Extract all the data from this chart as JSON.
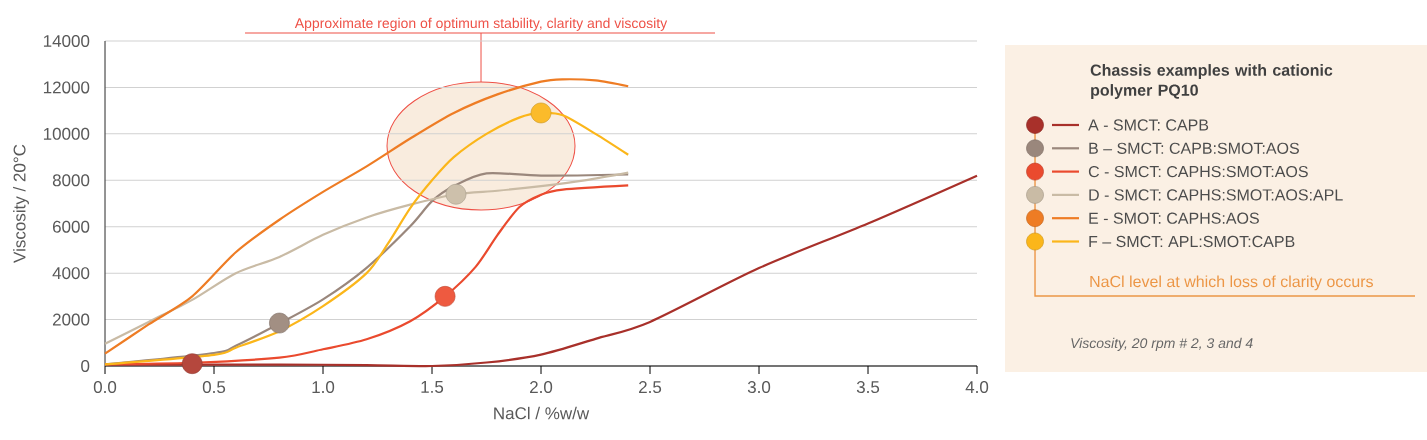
{
  "chart_data": {
    "type": "line",
    "xlabel": "NaCl / %w/w",
    "ylabel": "Viscosity / 20°C",
    "legend_title": "Chassis examples with cationic polymer PQ10",
    "xlim": [
      0,
      4
    ],
    "ylim": [
      0,
      14000
    ],
    "xticks": [
      {
        "value": 0,
        "label": "0.0"
      },
      {
        "value": 0.5,
        "label": "0.5"
      },
      {
        "value": 1,
        "label": "1.0"
      },
      {
        "value": 1.5,
        "label": "1.5"
      },
      {
        "value": 2,
        "label": "2.0"
      },
      {
        "value": 2.5,
        "label": "2.5"
      },
      {
        "value": 3,
        "label": "3.0"
      },
      {
        "value": 3.5,
        "label": "3.5"
      },
      {
        "value": 4,
        "label": "4.0"
      }
    ],
    "yticks": [
      0,
      2000,
      4000,
      6000,
      8000,
      10000,
      12000,
      14000
    ],
    "grid": "y",
    "legend": "right",
    "line_style": "solid",
    "series": [
      {
        "name": "A - SMCT: CAPB",
        "color": "#a8302a",
        "x": [
          0,
          0.4,
          0.8,
          1.2,
          1.5,
          1.75,
          2.0,
          2.25,
          2.5,
          3.0,
          3.5,
          4.0
        ],
        "values": [
          60,
          60,
          60,
          40,
          0,
          150,
          490,
          1170,
          1900,
          4220,
          6140,
          8200
        ]
      },
      {
        "name": "B – SMCT: CAPB:SMOT:AOS",
        "color": "#9a877c",
        "x": [
          0,
          0.5,
          0.6,
          0.8,
          1.0,
          1.2,
          1.4,
          1.5,
          1.6,
          1.75,
          2.0,
          2.4
        ],
        "values": [
          70,
          560,
          870,
          1830,
          2870,
          4230,
          6020,
          7100,
          7750,
          8300,
          8200,
          8250
        ]
      },
      {
        "name": "C - SMCT: CAPHS:SMOT:AOS",
        "color": "#ea4a2e",
        "x": [
          0,
          0.4,
          0.8,
          1.0,
          1.2,
          1.4,
          1.56,
          1.7,
          1.8,
          1.9,
          2.0,
          2.1,
          2.4
        ],
        "values": [
          80,
          140,
          360,
          720,
          1150,
          1930,
          3000,
          4270,
          5640,
          6840,
          7380,
          7600,
          7780
        ]
      },
      {
        "name": "D - SMCT: CAPHS:SMOT:AOS:APL",
        "color": "#c9bba5",
        "x": [
          0,
          0.2,
          0.4,
          0.6,
          0.8,
          1.0,
          1.2,
          1.4,
          1.61,
          1.8,
          2.0,
          2.2,
          2.4
        ],
        "values": [
          960,
          1900,
          2850,
          4000,
          4700,
          5650,
          6400,
          6950,
          7400,
          7550,
          7750,
          8000,
          8330
        ]
      },
      {
        "name": "E - SMOT: CAPHS:AOS",
        "color": "#ee7c24",
        "x": [
          0,
          0.2,
          0.4,
          0.6,
          0.8,
          1.0,
          1.2,
          1.4,
          1.6,
          1.8,
          2.0,
          2.1,
          2.25,
          2.4
        ],
        "values": [
          530,
          1790,
          3000,
          4900,
          6300,
          7500,
          8600,
          9800,
          10900,
          11700,
          12250,
          12350,
          12300,
          12050
        ]
      },
      {
        "name": "F – SMCT: APL:SMOT:CAPB",
        "color": "#fbb61a",
        "x": [
          0,
          0.5,
          0.6,
          0.8,
          1.0,
          1.2,
          1.3,
          1.4,
          1.5,
          1.6,
          1.75,
          1.9,
          2.0,
          2.1,
          2.25,
          2.4
        ],
        "values": [
          70,
          480,
          790,
          1500,
          2580,
          4000,
          5300,
          6800,
          8000,
          9000,
          10000,
          10700,
          10900,
          10800,
          10000,
          9100
        ]
      },
      {
        "type": "scatter",
        "x": [
          0.4,
          0.8,
          1.56,
          1.61,
          2.0
        ],
        "values": [
          100,
          1850,
          3000,
          7400,
          10900
        ],
        "colors": [
          "#b5473d",
          "#a28f83",
          "#ee5a40",
          "#cdc0ab",
          "#fbbb2b"
        ]
      }
    ],
    "annotations": [
      "Approximate region of optimum stability, clarity and viscosity",
      "NaCl level at which loss of clarity occurs",
      "Viscosity, 20 rpm # 2, 3 and 4"
    ]
  }
}
